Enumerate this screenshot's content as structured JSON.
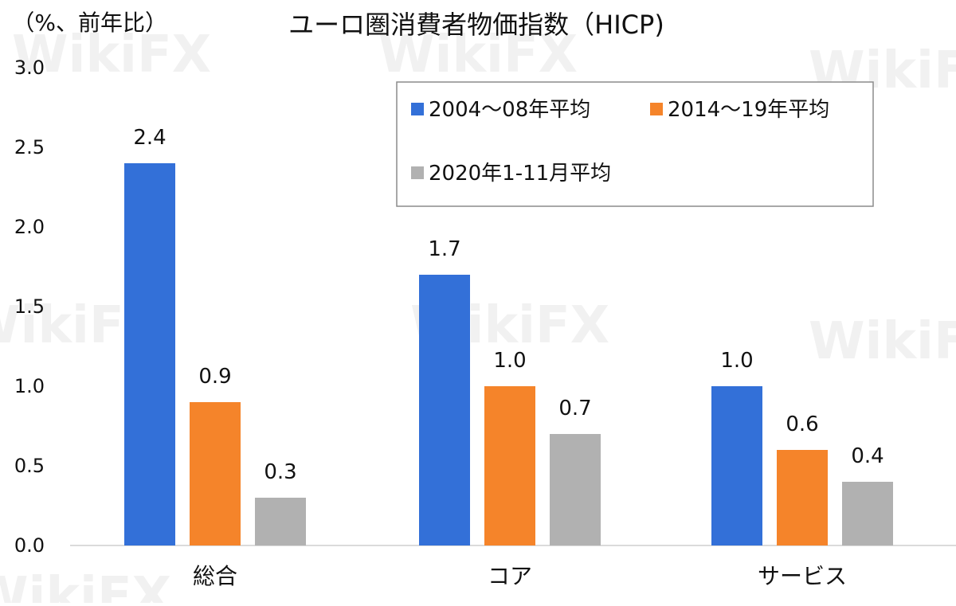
{
  "chart_data": {
    "type": "bar",
    "title": "ユーロ圏消費者物価指数（HICP)",
    "unit_label": "（%、前年比）",
    "categories": [
      "総合",
      "コア",
      "サービス"
    ],
    "series": [
      {
        "name": "2004～08年平均",
        "values": [
          2.4,
          1.7,
          1.0
        ],
        "labels": [
          "2.4",
          "1.7",
          "1.0"
        ]
      },
      {
        "name": "2014～19年平均",
        "values": [
          0.9,
          1.0,
          0.6
        ],
        "labels": [
          "0.9",
          "1.0",
          "0.6"
        ]
      },
      {
        "name": "2020年1-11月平均",
        "values": [
          0.3,
          0.7,
          0.4
        ],
        "labels": [
          "0.3",
          "0.7",
          "0.4"
        ]
      }
    ],
    "ylim": [
      0,
      3.0
    ],
    "yticks": [
      "0.0",
      "0.5",
      "1.0",
      "1.5",
      "2.0",
      "2.5",
      "3.0"
    ],
    "grid": false,
    "legend_position": "top-right",
    "colors": [
      "#3370d8",
      "#f5842a",
      "#b1b1b1"
    ]
  },
  "watermark": "WikiFX"
}
